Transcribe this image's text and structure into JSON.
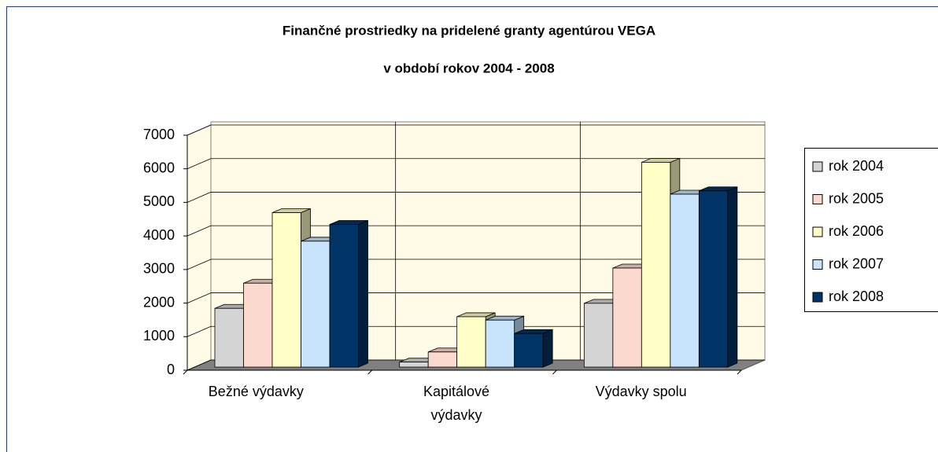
{
  "chart_data": {
    "type": "bar3d",
    "title": "Finančné prostriedky na pridelené granty agentúrou VEGA",
    "subtitle": "v období rokov 2004 - 2008",
    "categories": [
      "Bežné  výdavky",
      "Kapitálové výdavky",
      "Výdavky spolu"
    ],
    "series": [
      {
        "name": "rok 2004",
        "color": "#d4d4d4",
        "values": [
          1750,
          150,
          1900
        ]
      },
      {
        "name": "rok 2005",
        "color": "#fbd9cf",
        "values": [
          2500,
          450,
          2950
        ]
      },
      {
        "name": "rok 2006",
        "color": "#ffffc8",
        "values": [
          4600,
          1500,
          6100
        ]
      },
      {
        "name": "rok 2007",
        "color": "#c8e4fc",
        "values": [
          3750,
          1400,
          5150
        ]
      },
      {
        "name": "rok 2008",
        "color": "#003366",
        "values": [
          4250,
          1000,
          5250
        ]
      }
    ],
    "ylim": [
      0,
      7000
    ],
    "yticks": [
      0,
      1000,
      2000,
      3000,
      4000,
      5000,
      6000,
      7000
    ],
    "grid": true,
    "legend": "right"
  }
}
